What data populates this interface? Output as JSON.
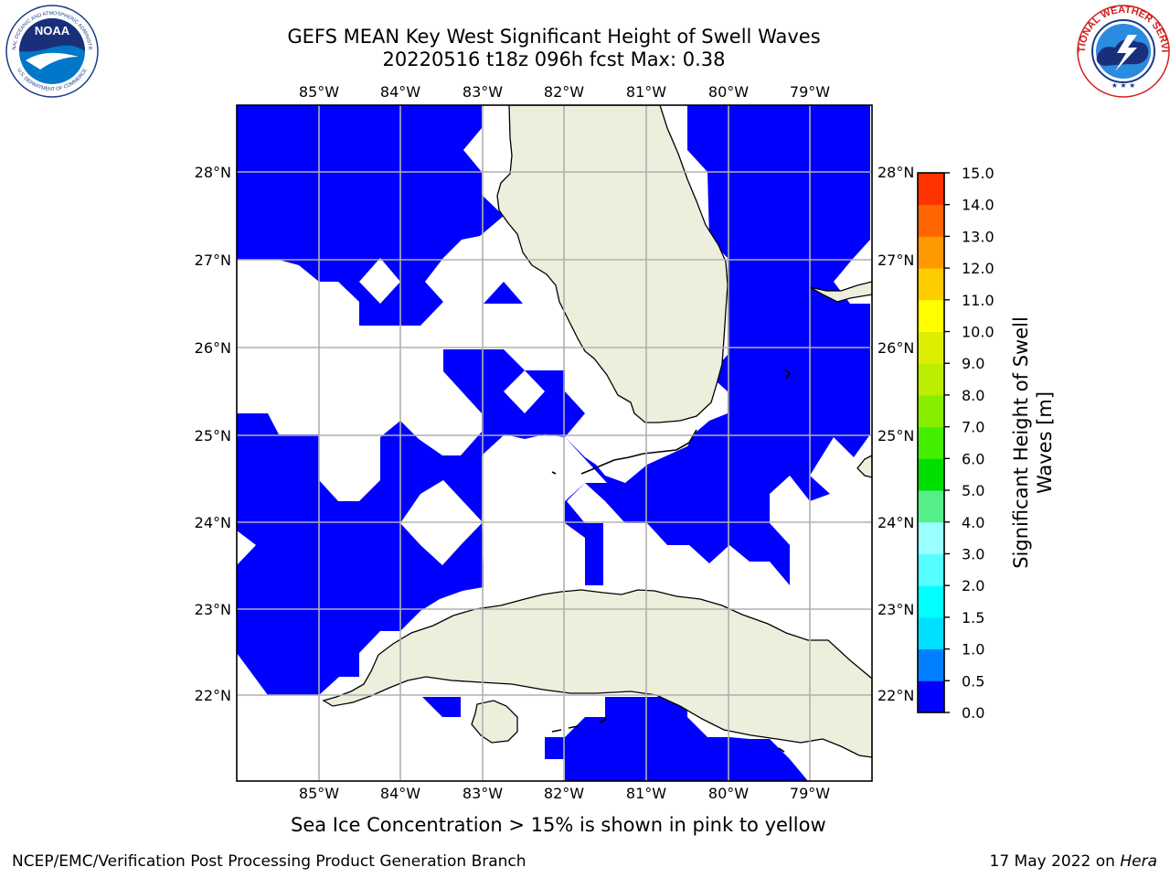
{
  "title": {
    "line1": "GEFS MEAN Key West Significant Height of Swell Waves",
    "line2": "20220516 t18z 096h fcst   Max: 0.38"
  },
  "map": {
    "lon_labels": [
      "85°W",
      "84°W",
      "83°W",
      "82°W",
      "81°W",
      "80°W",
      "79°W"
    ],
    "lat_labels": [
      "28°N",
      "27°N",
      "26°N",
      "25°N",
      "24°N",
      "23°N",
      "22°N"
    ],
    "extent": {
      "lon_min": -86.0,
      "lon_max": -78.25,
      "lat_min": 21.0,
      "lat_max": 28.75
    },
    "land_color": "#eeeedd",
    "swell_color": "#0000ff",
    "regions": [
      "Florida",
      "Cuba",
      "Bahamas",
      "Isla de la Juventud"
    ]
  },
  "colorbar": {
    "label": "Significant Height of Swell Waves [m]",
    "label_line1": "Significant Height of Swell",
    "label_line2": "Waves [m]",
    "ticks": [
      "0.0",
      "0.5",
      "1.0",
      "1.5",
      "2.0",
      "3.0",
      "4.0",
      "5.0",
      "6.0",
      "7.0",
      "8.0",
      "9.0",
      "10.0",
      "11.0",
      "12.0",
      "13.0",
      "14.0",
      "15.0"
    ],
    "colors": [
      "#0000ff",
      "#0080ff",
      "#00dfff",
      "#00ffff",
      "#55ffff",
      "#99ffff",
      "#55ee88",
      "#00dd00",
      "#44ee00",
      "#88ee00",
      "#bbee00",
      "#ddee00",
      "#ffff00",
      "#ffcc00",
      "#ff9900",
      "#ff6600",
      "#ff3300",
      "#ff0000"
    ]
  },
  "chart_data": {
    "type": "heatmap",
    "title": "GEFS MEAN Key West Significant Height of Swell Waves",
    "subtitle": "20220516 t18z 096h fcst   Max: 0.38",
    "max_value": 0.38,
    "value_range": [
      0.0,
      15.0
    ],
    "units": "m",
    "xlim": [
      -86.0,
      -78.25
    ],
    "ylim": [
      21.0,
      28.75
    ]
  },
  "caption": "Sea Ice Concentration > 15% is shown in pink to yellow",
  "footer": {
    "left": "NCEP/EMC/Verification Post Processing Product Generation Branch",
    "right_prefix": "17 May 2022 on ",
    "right_host": "Hera"
  },
  "logos": {
    "noaa": {
      "text": "NOAA",
      "ring_top": "NATIONAL OCEANIC AND ATMOSPHERIC ADMINISTRATION",
      "ring_bottom": "U.S. DEPARTMENT OF COMMERCE"
    },
    "nws": {
      "text": "NATIONAL WEATHER SERVICE"
    }
  }
}
